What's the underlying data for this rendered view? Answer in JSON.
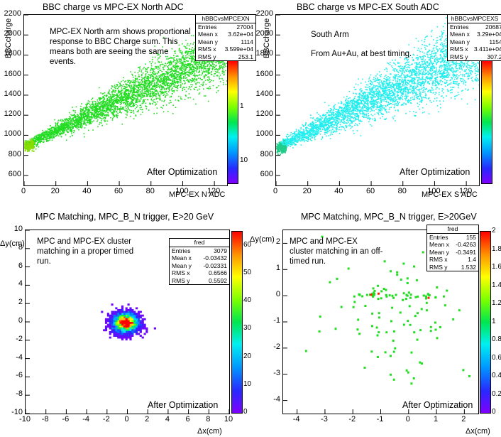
{
  "chart_data": [
    {
      "type": "heatmap",
      "title": "BBC charge vs MPC-EX North ADC",
      "xlabel": "MPC-EX N ADC",
      "ylabel": "BBCcharge",
      "xlim": [
        0,
        128
      ],
      "ylim": [
        500,
        2200
      ],
      "x_ticks": [
        "0",
        "20",
        "40",
        "60",
        "80",
        "100",
        "120"
      ],
      "y_ticks": [
        "600",
        "800",
        "1000",
        "1200",
        "1400",
        "1600",
        "1800",
        "2000",
        "2200"
      ],
      "z_ticks": [
        "1",
        "10"
      ],
      "z_scale": "log",
      "band": {
        "x0": 0,
        "y0": 900,
        "x1": 128,
        "y1": 1870,
        "width_low": 40,
        "width_high": 340
      },
      "fill_color": "#22dd22",
      "stats": {
        "name": "hBBCvsMPCEXN",
        "rows": [
          {
            "label": "Entries",
            "value": "27004"
          },
          {
            "label": "Mean x",
            "value": "3.62e+04"
          },
          {
            "label": "Mean y",
            "value": "1114"
          },
          {
            "label": "RMS x",
            "value": "3.599e+04"
          },
          {
            "label": "RMS y",
            "value": "253.1"
          }
        ]
      },
      "annotation": "MPC-EX North arm shows proportional response to BBC Charge sum.  This means both are seeing the same events.",
      "footer": "After Optimization"
    },
    {
      "type": "heatmap",
      "title": "BBC charge vs MPC-EX South ADC",
      "xlabel": "MPC-EX S ADC",
      "ylabel": "BBCcharge",
      "xlim": [
        0,
        128
      ],
      "ylim": [
        500,
        2200
      ],
      "x_ticks": [
        "0",
        "20",
        "40",
        "60",
        "80",
        "100",
        "120"
      ],
      "y_ticks": [
        "600",
        "800",
        "1000",
        "1200",
        "1400",
        "1600",
        "1800",
        "2000",
        "2200"
      ],
      "z_ticks": [
        "1",
        "10"
      ],
      "z_scale": "log",
      "band": {
        "x0": 0,
        "y0": 880,
        "x1": 128,
        "y1": 1900,
        "width_low": 40,
        "width_high": 420
      },
      "fill_color": "#22eeee",
      "stats": {
        "name": "hBBCvsMPCEXS",
        "rows": [
          {
            "label": "Entries",
            "value": "20687"
          },
          {
            "label": "Mean x",
            "value": "3.29e+04"
          },
          {
            "label": "Mean y",
            "value": "1154"
          },
          {
            "label": "RMS x",
            "value": "3.411e+04"
          },
          {
            "label": "RMS y",
            "value": "307.2"
          }
        ]
      },
      "annotation_lines": [
        "South Arm",
        "From Au+Au, at best timing."
      ],
      "footer": "After Optimization"
    },
    {
      "type": "heatmap",
      "title": "MPC Matching, MPC_B_N trigger, E>20 GeV",
      "xlabel": "Δx(cm)",
      "ylabel": "Δy(cm)",
      "xlim": [
        -10,
        10
      ],
      "ylim": [
        -10,
        10
      ],
      "x_ticks": [
        "-10",
        "-8",
        "-6",
        "-4",
        "-2",
        "0",
        "2",
        "4",
        "6",
        "8",
        "10"
      ],
      "y_ticks": [
        "-10",
        "-8",
        "-6",
        "-4",
        "-2",
        "0",
        "2",
        "4",
        "6",
        "8",
        "10"
      ],
      "z_ticks": [
        "0",
        "10",
        "20",
        "30",
        "40",
        "50",
        "60"
      ],
      "zlim": [
        0,
        65
      ],
      "blob": {
        "cx": -0.2,
        "cy": -0.1,
        "sigma_x": 0.66,
        "sigma_y": 0.56
      },
      "stats": {
        "name": "fred",
        "rows": [
          {
            "label": "Entries",
            "value": "3079"
          },
          {
            "label": "Mean x",
            "value": "-0.03432"
          },
          {
            "label": "Mean y",
            "value": "-0.02331"
          },
          {
            "label": "RMS x",
            "value": "0.6566"
          },
          {
            "label": "RMS y",
            "value": "0.5592"
          }
        ]
      },
      "annotation": "MPC and MPC-EX cluster matching in a proper timed run.",
      "footer": "After Optimization"
    },
    {
      "type": "heatmap",
      "title": "MPC Matching, MPC_B_N trigger, E>20GeV",
      "xlabel": "Δx(cm)",
      "ylabel": "Δy(cm)",
      "xlim": [
        -4.5,
        2.5
      ],
      "ylim": [
        -4.5,
        2.5
      ],
      "x_ticks": [
        "-4",
        "-3",
        "-2",
        "-1",
        "0",
        "1",
        "2"
      ],
      "y_ticks": [
        "-4",
        "-3",
        "-2",
        "-1",
        "0",
        "1",
        "2"
      ],
      "z_ticks": [
        "0",
        "0.2",
        "0.4",
        "0.6",
        "0.8",
        "1",
        "1.2",
        "1.4",
        "1.6",
        "1.8",
        "2"
      ],
      "zlim": [
        0,
        2
      ],
      "stats": {
        "name": "fred",
        "rows": [
          {
            "label": "Entries",
            "value": "155"
          },
          {
            "label": "Mean x",
            "value": "-0.4263"
          },
          {
            "label": "Mean y",
            "value": "-0.3491"
          },
          {
            "label": "RMS x",
            "value": "1.4"
          },
          {
            "label": "RMS y",
            "value": "1.532"
          }
        ]
      },
      "annotation": "MPC and MPC-EX cluster matching in an off-timed run.",
      "footer": "After Optimization"
    }
  ]
}
